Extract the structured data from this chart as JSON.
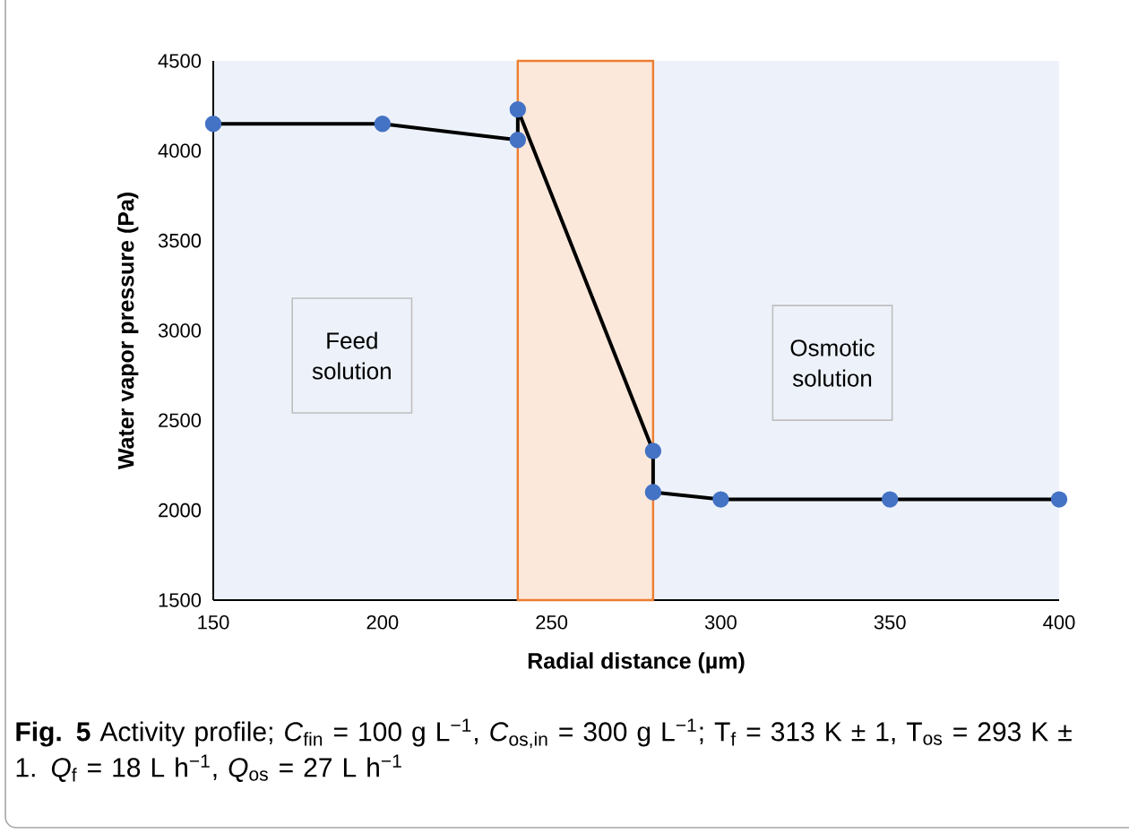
{
  "chart_data": {
    "type": "line",
    "xlabel": "Radial distance (µm)",
    "ylabel": "Water vapor pressure (Pa)",
    "xlim": [
      150,
      400
    ],
    "ylim": [
      1500,
      4500
    ],
    "xticks": [
      150,
      200,
      250,
      300,
      350,
      400
    ],
    "yticks": [
      1500,
      2000,
      2500,
      3000,
      3500,
      4000,
      4500
    ],
    "series": [
      {
        "color": "#4472c4",
        "x": [
          150,
          200,
          240,
          240,
          280,
          280,
          300,
          350,
          400
        ],
        "values": [
          4150,
          4150,
          4060,
          4230,
          2330,
          2100,
          2060,
          2060,
          2060
        ]
      }
    ],
    "marker": "circle",
    "line_style": "solid",
    "bands": [
      {
        "axis": "x",
        "from": 240,
        "to": 280,
        "color": "#ed7d31"
      }
    ],
    "annotations": [
      "Feed solution",
      "Osmotic solution",
      "**Fig. 5**  Activity profile; *C*$_{fin}$ = 100 g L$^{−1}$, *C*$_{os,in}$ = 300 g L$^{−1}$; T$_{f}$ = 313 K ± 1, T$_{os}$ = 293 K ± 1. *Q*$_{f}$ = 18 L h$^{−1}$, *Q*$_{os}$ = 27 L h$^{−1}$"
    ]
  }
}
